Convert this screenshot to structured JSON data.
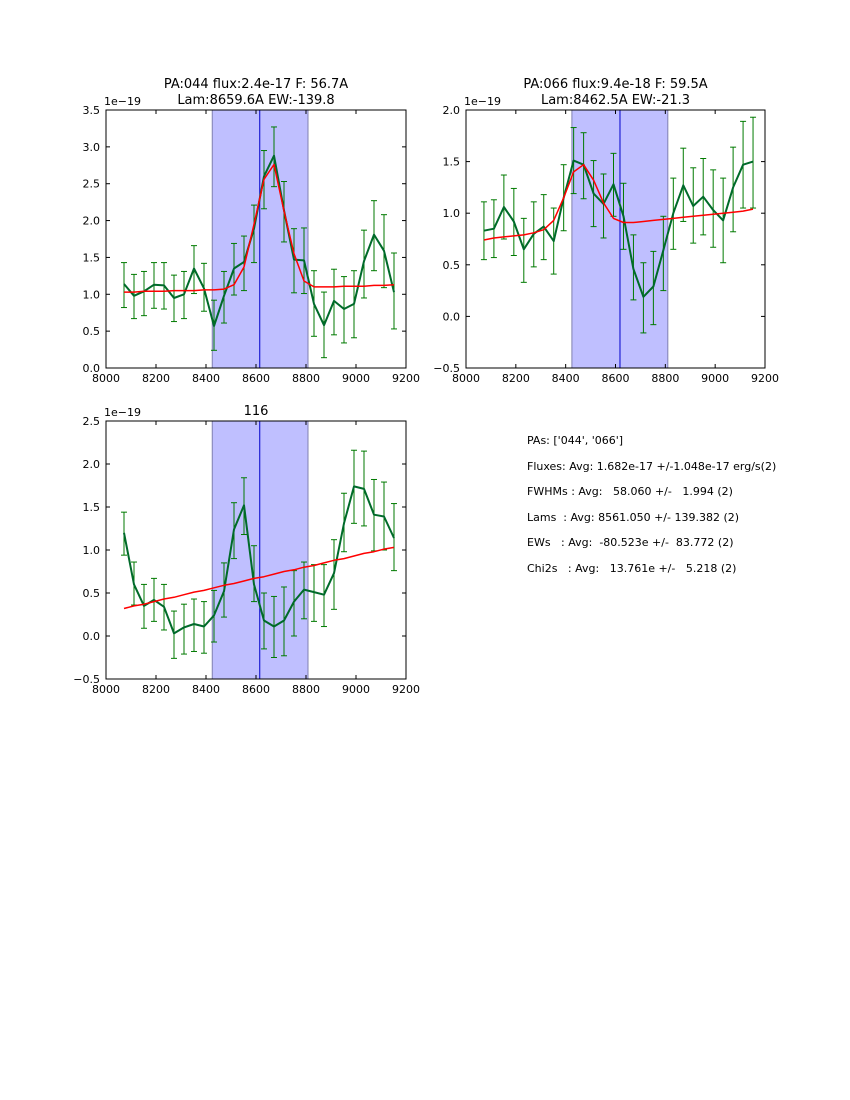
{
  "chart_data": [
    {
      "type": "line",
      "title": "PA:044 flux:2.4e-17 F: 56.7A\nLam:8659.6A EW:-139.8",
      "title_lines": [
        "PA:044 flux:2.4e-17 F: 56.7A",
        "Lam:8659.6A EW:-139.8"
      ],
      "offset_label": "1e−19",
      "xlim": [
        8000,
        9200
      ],
      "ylim": [
        0.0,
        3.5
      ],
      "xticks": [
        8000,
        8200,
        8400,
        8600,
        8800,
        9000,
        9200
      ],
      "xtick_labels": [
        "8000",
        "8200",
        "8400",
        "8600",
        "8800",
        "9000",
        "9200"
      ],
      "yticks": [
        0.0,
        0.5,
        1.0,
        1.5,
        2.0,
        2.5,
        3.0,
        3.5
      ],
      "ytick_labels": [
        "0.0",
        "0.5",
        "1.0",
        "1.5",
        "2.0",
        "2.5",
        "3.0",
        "3.5"
      ],
      "shaded_region": [
        8425,
        8808
      ],
      "vline": 8615,
      "x": [
        8072,
        8112,
        8152,
        8192,
        8232,
        8272,
        8312,
        8352,
        8392,
        8432,
        8472,
        8512,
        8552,
        8592,
        8632,
        8672,
        8712,
        8752,
        8792,
        8832,
        8872,
        8912,
        8952,
        8992,
        9032,
        9072,
        9112,
        9152
      ],
      "series": [
        {
          "name": "flux",
          "color": "#006a2a",
          "values": [
            1.14,
            0.98,
            1.04,
            1.13,
            1.12,
            0.95,
            1.0,
            1.35,
            1.08,
            0.57,
            0.98,
            1.35,
            1.44,
            1.89,
            2.6,
            2.88,
            2.14,
            1.47,
            1.46,
            0.87,
            0.58,
            0.91,
            0.8,
            0.87,
            1.45,
            1.81,
            1.59,
            1.03
          ],
          "err_hi": [
            1.43,
            1.27,
            1.31,
            1.43,
            1.43,
            1.26,
            1.31,
            1.66,
            1.42,
            0.92,
            1.31,
            1.69,
            1.79,
            2.21,
            2.95,
            3.27,
            2.53,
            1.89,
            1.9,
            1.32,
            1.03,
            1.34,
            1.24,
            1.32,
            1.87,
            2.27,
            2.08,
            1.56
          ],
          "err_lo": [
            0.82,
            0.67,
            0.71,
            0.81,
            0.8,
            0.63,
            0.67,
            1.01,
            0.77,
            0.24,
            0.61,
            0.99,
            1.05,
            1.43,
            2.16,
            2.46,
            1.71,
            1.02,
            1.01,
            0.43,
            0.14,
            0.45,
            0.34,
            0.41,
            0.95,
            1.32,
            1.09,
            0.53
          ]
        },
        {
          "name": "fit",
          "color": "#ff0000",
          "values": [
            1.03,
            1.03,
            1.04,
            1.04,
            1.04,
            1.05,
            1.05,
            1.05,
            1.06,
            1.06,
            1.07,
            1.13,
            1.37,
            1.95,
            2.56,
            2.76,
            2.13,
            1.55,
            1.18,
            1.1,
            1.1,
            1.1,
            1.11,
            1.11,
            1.11,
            1.12,
            1.12,
            1.13
          ]
        }
      ]
    },
    {
      "type": "line",
      "title": "PA:066 flux:9.4e-18 F: 59.5A\nLam:8462.5A EW:-21.3",
      "title_lines": [
        "PA:066 flux:9.4e-18 F: 59.5A",
        "Lam:8462.5A EW:-21.3"
      ],
      "offset_label": "1e−19",
      "xlim": [
        8000,
        9200
      ],
      "ylim": [
        -0.5,
        2.0
      ],
      "xticks": [
        8000,
        8200,
        8400,
        8600,
        8800,
        9000,
        9200
      ],
      "xtick_labels": [
        "8000",
        "8200",
        "8400",
        "8600",
        "8800",
        "9000",
        "9200"
      ],
      "yticks": [
        -0.5,
        0.0,
        0.5,
        1.0,
        1.5,
        2.0
      ],
      "ytick_labels": [
        "−0.5",
        "0.0",
        "0.5",
        "1.0",
        "1.5",
        "2.0"
      ],
      "shaded_region": [
        8425,
        8810
      ],
      "vline": 8618,
      "x": [
        8072,
        8112,
        8152,
        8192,
        8232,
        8272,
        8312,
        8352,
        8392,
        8432,
        8472,
        8512,
        8552,
        8592,
        8632,
        8672,
        8712,
        8752,
        8792,
        8832,
        8872,
        8912,
        8952,
        8992,
        9032,
        9072,
        9112,
        9152
      ],
      "series": [
        {
          "name": "flux",
          "color": "#006a2a",
          "values": [
            0.83,
            0.85,
            1.06,
            0.92,
            0.65,
            0.8,
            0.87,
            0.73,
            1.15,
            1.51,
            1.47,
            1.19,
            1.09,
            1.28,
            0.97,
            0.46,
            0.19,
            0.29,
            0.64,
            1.0,
            1.27,
            1.07,
            1.16,
            1.03,
            0.93,
            1.25,
            1.47,
            1.5
          ],
          "err_hi": [
            1.11,
            1.13,
            1.37,
            1.24,
            0.95,
            1.11,
            1.18,
            1.05,
            1.47,
            1.83,
            1.78,
            1.51,
            1.38,
            1.58,
            1.29,
            0.79,
            0.52,
            0.63,
            0.97,
            1.34,
            1.63,
            1.44,
            1.53,
            1.42,
            1.34,
            1.64,
            1.89,
            1.93
          ],
          "err_lo": [
            0.55,
            0.57,
            0.75,
            0.59,
            0.33,
            0.48,
            0.55,
            0.41,
            0.83,
            1.19,
            1.14,
            0.87,
            0.76,
            0.97,
            0.65,
            0.16,
            -0.16,
            -0.08,
            0.25,
            0.65,
            0.92,
            0.71,
            0.79,
            0.67,
            0.52,
            0.82,
            1.05,
            1.05
          ]
        },
        {
          "name": "fit",
          "color": "#ff0000",
          "values": [
            0.74,
            0.76,
            0.77,
            0.78,
            0.79,
            0.81,
            0.84,
            0.93,
            1.15,
            1.4,
            1.47,
            1.32,
            1.1,
            0.95,
            0.91,
            0.91,
            0.92,
            0.93,
            0.94,
            0.95,
            0.96,
            0.97,
            0.98,
            0.99,
            1.0,
            1.01,
            1.02,
            1.04
          ]
        }
      ]
    },
    {
      "type": "line",
      "title": "116",
      "title_lines": [
        "116"
      ],
      "offset_label": "1e−19",
      "xlim": [
        8000,
        9200
      ],
      "ylim": [
        -0.5,
        2.5
      ],
      "xticks": [
        8000,
        8200,
        8400,
        8600,
        8800,
        9000,
        9200
      ],
      "xtick_labels": [
        "8000",
        "8200",
        "8400",
        "8600",
        "8800",
        "9000",
        "9200"
      ],
      "yticks": [
        -0.5,
        0.0,
        0.5,
        1.0,
        1.5,
        2.0,
        2.5
      ],
      "ytick_labels": [
        "−0.5",
        "0.0",
        "0.5",
        "1.0",
        "1.5",
        "2.0",
        "2.5"
      ],
      "shaded_region": [
        8425,
        8808
      ],
      "vline": 8615,
      "x": [
        8072,
        8112,
        8152,
        8192,
        8232,
        8272,
        8312,
        8352,
        8392,
        8432,
        8472,
        8512,
        8552,
        8592,
        8632,
        8672,
        8712,
        8752,
        8792,
        8832,
        8872,
        8912,
        8952,
        8992,
        9032,
        9072,
        9112,
        9152
      ],
      "series": [
        {
          "name": "flux",
          "color": "#006a2a",
          "values": [
            1.2,
            0.6,
            0.35,
            0.42,
            0.34,
            0.03,
            0.1,
            0.14,
            0.11,
            0.24,
            0.52,
            1.24,
            1.52,
            0.6,
            0.18,
            0.11,
            0.18,
            0.4,
            0.54,
            0.51,
            0.48,
            0.73,
            1.31,
            1.74,
            1.71,
            1.41,
            1.39,
            1.14
          ],
          "err_hi": [
            1.44,
            0.86,
            0.6,
            0.67,
            0.6,
            0.29,
            0.37,
            0.43,
            0.4,
            0.53,
            0.85,
            1.55,
            1.84,
            1.05,
            0.5,
            0.46,
            0.57,
            0.76,
            0.86,
            0.83,
            0.83,
            1.12,
            1.66,
            2.16,
            2.15,
            1.82,
            1.79,
            1.54
          ],
          "err_lo": [
            0.94,
            0.36,
            0.09,
            0.17,
            0.07,
            -0.26,
            -0.21,
            -0.18,
            -0.2,
            -0.07,
            0.22,
            0.9,
            1.18,
            0.4,
            -0.15,
            -0.25,
            -0.23,
            0.0,
            0.2,
            0.17,
            0.11,
            0.31,
            0.98,
            1.31,
            1.28,
            0.99,
            1.0,
            0.76
          ]
        },
        {
          "name": "fit",
          "color": "#ff0000",
          "values": [
            0.32,
            0.35,
            0.37,
            0.4,
            0.43,
            0.45,
            0.48,
            0.51,
            0.53,
            0.56,
            0.59,
            0.61,
            0.64,
            0.67,
            0.69,
            0.72,
            0.75,
            0.77,
            0.8,
            0.82,
            0.85,
            0.88,
            0.9,
            0.93,
            0.96,
            0.98,
            1.01,
            1.03
          ]
        }
      ]
    }
  ],
  "colors": {
    "flux_line": "#006a2a",
    "error_bars": "#007a00",
    "fit_line": "#ff0000",
    "shade_fill": "#bfbfff",
    "shade_edge": "#8080b0",
    "vline": "#0000cc"
  },
  "stats": {
    "lines": [
      "PAs: ['044', '066']",
      "Fluxes: Avg: 1.682e-17 +/-1.048e-17 erg/s(2)",
      "FWHMs : Avg:   58.060 +/-   1.994 (2)",
      "Lams  : Avg: 8561.050 +/- 139.382 (2)",
      "EWs   : Avg:  -80.523e +/-  83.772 (2)",
      "Chi2s   : Avg:   13.761e +/-   5.218 (2)"
    ]
  }
}
